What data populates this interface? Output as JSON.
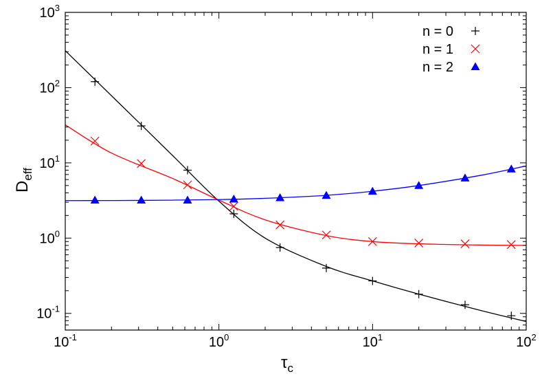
{
  "chart_data": {
    "type": "scatter",
    "title": "",
    "xlabel": {
      "base": "τ",
      "sub": "c"
    },
    "ylabel": {
      "base": "D",
      "sub": "eff"
    },
    "x_scale": "log",
    "y_scale": "log",
    "xlim": [
      0.1,
      100
    ],
    "ylim": [
      0.06,
      1000
    ],
    "grid": false,
    "legend_position": "top-right",
    "x_ticks": [
      {
        "value": 0.1,
        "base": "10",
        "exp": "-1"
      },
      {
        "value": 1,
        "base": "10",
        "exp": "0"
      },
      {
        "value": 10,
        "base": "10",
        "exp": "1"
      },
      {
        "value": 100,
        "base": "10",
        "exp": "2"
      }
    ],
    "y_ticks": [
      {
        "value": 0.1,
        "base": "10",
        "exp": "-1"
      },
      {
        "value": 1,
        "base": "10",
        "exp": "0"
      },
      {
        "value": 10,
        "base": "10",
        "exp": "1"
      },
      {
        "value": 100,
        "base": "10",
        "exp": "2"
      },
      {
        "value": 1000,
        "base": "10",
        "exp": "3"
      }
    ],
    "series": [
      {
        "name": "n = 0",
        "color": "#000000",
        "marker": "plus",
        "x": [
          0.156,
          0.3125,
          0.625,
          1.25,
          2.5,
          5,
          10,
          20,
          40,
          80
        ],
        "y": [
          120,
          31,
          8.0,
          2.1,
          0.75,
          0.4,
          0.27,
          0.18,
          0.13,
          0.093
        ],
        "fit_x": [
          0.1,
          0.2,
          0.5,
          1,
          2,
          5,
          10,
          20,
          50,
          100
        ],
        "fit_y": [
          310,
          78,
          12.5,
          3.1,
          1.0,
          0.42,
          0.27,
          0.18,
          0.11,
          0.078
        ]
      },
      {
        "name": "n = 1",
        "color": "#ff0000",
        "marker": "cross",
        "x": [
          0.156,
          0.3125,
          0.625,
          1.25,
          2.5,
          5,
          10,
          20,
          40,
          80
        ],
        "y": [
          19.5,
          9.8,
          5.1,
          2.65,
          1.5,
          1.1,
          0.9,
          0.86,
          0.84,
          0.82
        ],
        "fit_x": [
          0.1,
          0.2,
          0.5,
          1,
          2,
          5,
          10,
          20,
          50,
          100
        ],
        "fit_y": [
          32,
          13.5,
          6.2,
          3.2,
          1.75,
          1.08,
          0.9,
          0.84,
          0.81,
          0.8
        ]
      },
      {
        "name": "n = 2",
        "color": "#0000ff",
        "marker": "triangle",
        "x": [
          0.156,
          0.3125,
          0.625,
          1.25,
          2.5,
          5,
          10,
          20,
          40,
          80
        ],
        "y": [
          3.2,
          3.2,
          3.2,
          3.3,
          3.45,
          3.7,
          4.2,
          5.0,
          6.3,
          8.3
        ],
        "fit_x": [
          0.1,
          0.3,
          1,
          2,
          5,
          10,
          20,
          50,
          100
        ],
        "fit_y": [
          3.15,
          3.17,
          3.25,
          3.38,
          3.7,
          4.2,
          5.0,
          6.8,
          9.1
        ]
      }
    ]
  }
}
